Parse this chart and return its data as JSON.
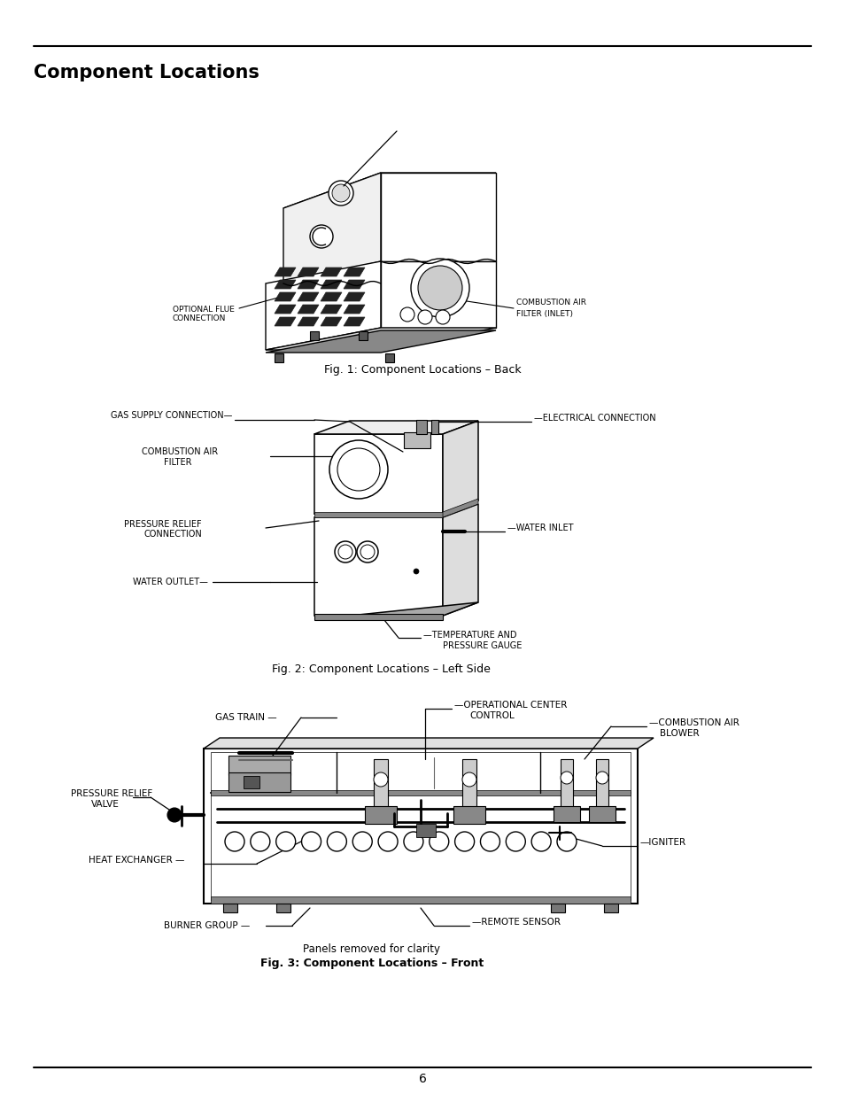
{
  "page_title": "Component Locations",
  "title_fontsize": 15,
  "title_bold": true,
  "background_color": "#ffffff",
  "fig1_caption": "Fig. 1: Component Locations – Back",
  "fig2_caption": "Fig. 2: Component Locations – Left Side",
  "fig3_caption": "Fig. 3: Component Locations – Front",
  "fig3_note": "Panels removed for clarity",
  "page_num": "6"
}
